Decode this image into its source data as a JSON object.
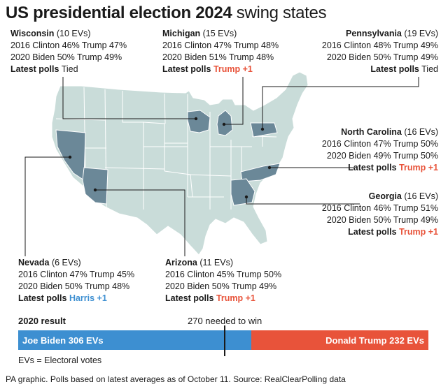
{
  "title": {
    "bold": "US presidential election 2024",
    "rest": " swing states"
  },
  "states": [
    {
      "id": "wisconsin",
      "name": "Wisconsin",
      "evs": " (10 EVs)",
      "line2016": "2016 Clinton 46% Trump 47%",
      "line2020": "2020 Biden 50% Trump 49%",
      "polls_label": "Latest polls",
      "polls_value": " Tied",
      "polls_color": "none"
    },
    {
      "id": "michigan",
      "name": "Michigan",
      "evs": " (15 EVs)",
      "line2016": "2016 Clinton 47% Trump 48%",
      "line2020": "2020 Biden 51% Trump 48%",
      "polls_label": "Latest polls",
      "polls_value": " Trump +1",
      "polls_color": "red"
    },
    {
      "id": "pennsylvania",
      "name": "Pennsylvania",
      "evs": " (19 EVs)",
      "line2016": "2016 Clinton 48% Trump 49%",
      "line2020": "2020 Biden 50% Trump 49%",
      "polls_label": "Latest polls",
      "polls_value": " Tied",
      "polls_color": "none"
    },
    {
      "id": "north-carolina",
      "name": "North Carolina",
      "evs": " (16 EVs)",
      "line2016": "2016 Clinton 47% Trump 50%",
      "line2020": "2020 Biden 49% Trump 50%",
      "polls_label": "Latest polls",
      "polls_value": " Trump +1",
      "polls_color": "red"
    },
    {
      "id": "georgia",
      "name": "Georgia",
      "evs": " (16 EVs)",
      "line2016": "2016 Clinton 46% Trump 51%",
      "line2020": "2020 Biden 50% Trump 49%",
      "polls_label": "Latest polls",
      "polls_value": " Trump +1",
      "polls_color": "red"
    },
    {
      "id": "nevada",
      "name": "Nevada",
      "evs": " (6 EVs)",
      "line2016": "2016 Clinton 47% Trump 45%",
      "line2020": "2020 Biden 50% Trump 48%",
      "polls_label": "Latest polls",
      "polls_value": " Harris +1",
      "polls_color": "blue"
    },
    {
      "id": "arizona",
      "name": "Arizona",
      "evs": " (11 EVs)",
      "line2016": "2016 Clinton 45% Trump 50%",
      "line2020": "2020 Biden 50% Trump 49%",
      "polls_label": "Latest polls",
      "polls_value": " Trump +1",
      "polls_color": "red"
    }
  ],
  "result": {
    "title": "2020 result",
    "needed": "270 needed to win",
    "dem_label": "Joe Biden 306 EVs",
    "rep_label": "Donald Trump 232 EVs",
    "dem_evs": 306,
    "rep_evs": 232,
    "dem_color": "#3d8fd1",
    "rep_color": "#e8533a"
  },
  "ev_note": "EVs = Electoral votes",
  "source": "PA graphic. Polls based on latest averages as of October 11. Source: RealClearPolling data",
  "colors": {
    "land": "#c9dcd9",
    "swing": "#6b8898",
    "border": "#ffffff",
    "leader": "#1a1a1a",
    "red": "#e8533a",
    "blue": "#3d8fd1"
  }
}
